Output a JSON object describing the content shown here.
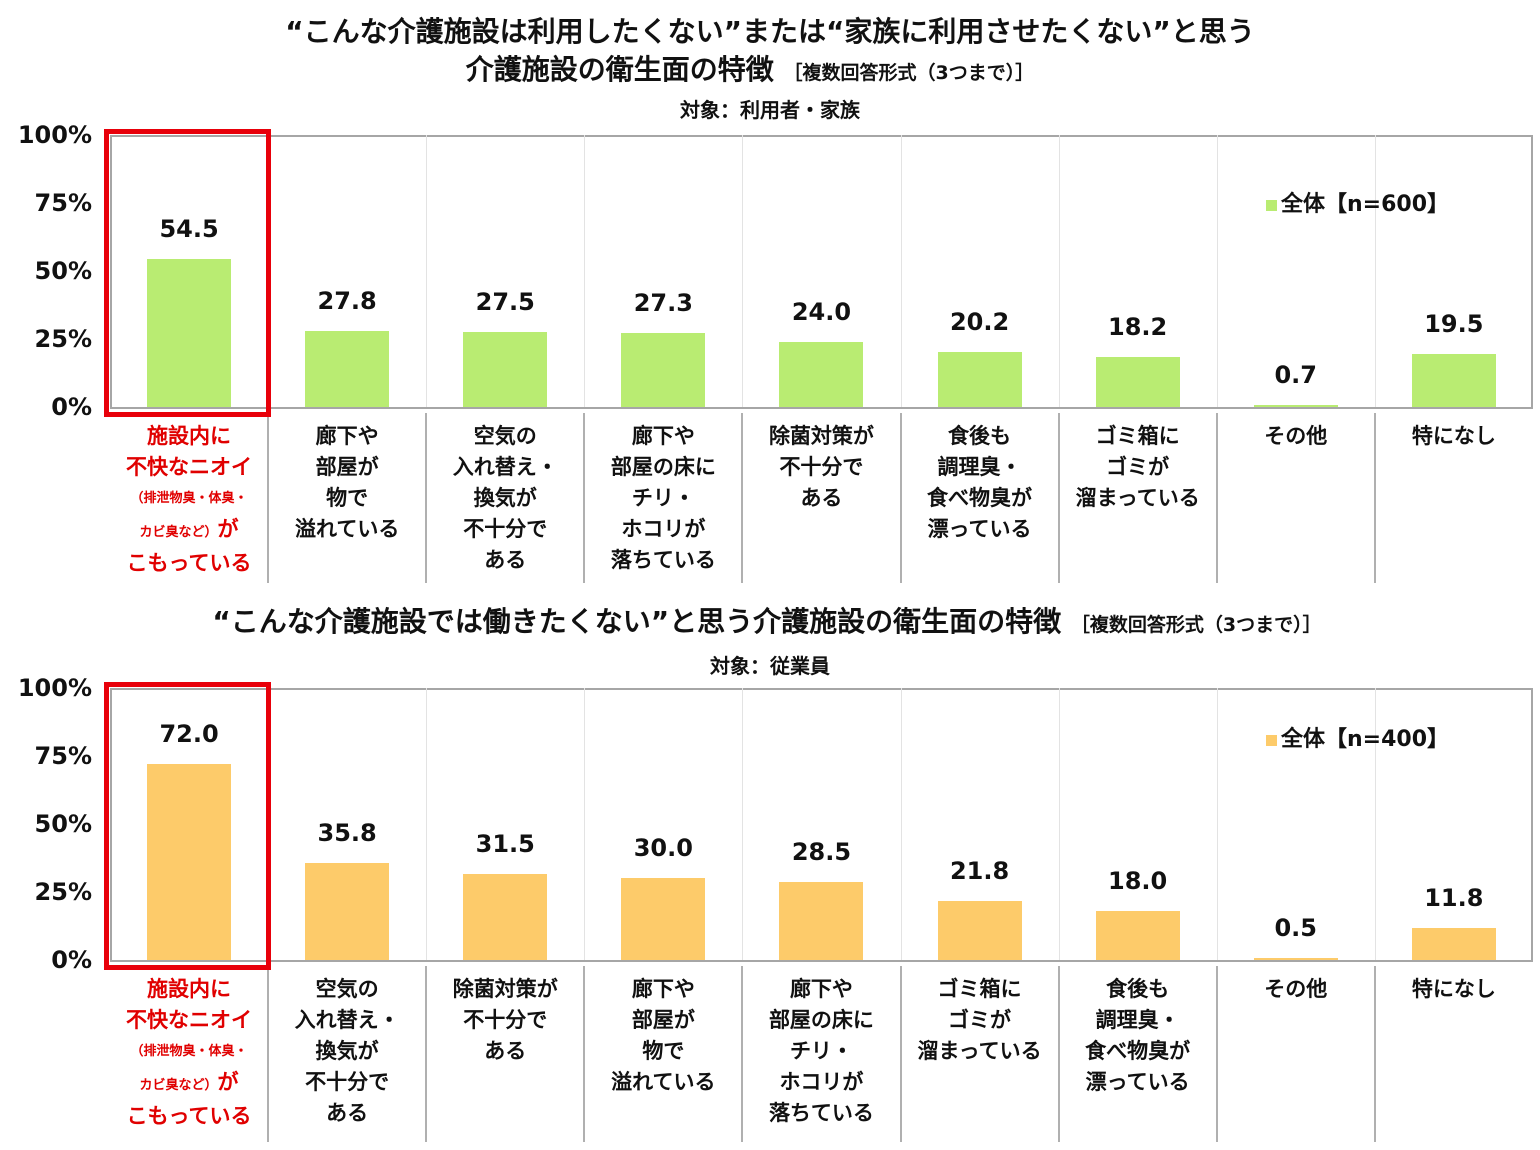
{
  "chart_data": [
    {
      "type": "bar",
      "title": "“こんな介護施設は利用したくない”または“家族に利用させたくない”と思う 介護施設の衛生面の特徴",
      "subtitle": "［複数回答形式（3つまで）］",
      "target": "対象：利用者・家族",
      "xlabel": "",
      "ylabel": "",
      "ylim": [
        0,
        100
      ],
      "yticks": [
        "100%",
        "75%",
        "50%",
        "25%",
        "0%"
      ],
      "grid": "vertical category separators",
      "legend_position": "top-right",
      "categories": [
        "施設内に不快なニオイ（排泄物臭・体臭・カビ臭など）がこもっている",
        "廊下や部屋が物で溢れている",
        "空気の入れ替え・換気が不十分である",
        "廊下や部屋の床にチリ・ホコリが落ちている",
        "除菌対策が不十分である",
        "食後も調理臭・食べ物臭が漂っている",
        "ゴミ箱にゴミが溜まっている",
        "その他",
        "特になし"
      ],
      "series": [
        {
          "name": "全体【n=600】",
          "color": "#B9EC72",
          "values": [
            54.5,
            27.8,
            27.5,
            27.3,
            24.0,
            20.2,
            18.2,
            0.7,
            19.5
          ]
        }
      ],
      "highlight_index": 0
    },
    {
      "type": "bar",
      "title": "“こんな介護施設では働きたくない”と思う介護施設の衛生面の特徴",
      "subtitle": "［複数回答形式（3つまで）］",
      "target": "対象：従業員",
      "xlabel": "",
      "ylabel": "",
      "ylim": [
        0,
        100
      ],
      "yticks": [
        "100%",
        "75%",
        "50%",
        "25%",
        "0%"
      ],
      "grid": "vertical category separators",
      "legend_position": "top-right",
      "categories": [
        "施設内に不快なニオイ（排泄物臭・体臭・カビ臭など）がこもっている",
        "空気の入れ替え・換気が不十分である",
        "除菌対策が不十分である",
        "廊下や部屋が物で溢れている",
        "廊下や部屋の床にチリ・ホコリが落ちている",
        "ゴミ箱にゴミが溜まっている",
        "食後も調理臭・食べ物臭が漂っている",
        "その他",
        "特になし"
      ],
      "series": [
        {
          "name": "全体【n=400】",
          "color": "#FDCB6A",
          "values": [
            72.0,
            35.8,
            31.5,
            30.0,
            28.5,
            21.8,
            18.0,
            0.5,
            11.8
          ]
        }
      ],
      "highlight_index": 0
    }
  ],
  "top": {
    "title_line1": "“こんな介護施設は利用したくない”または“家族に利用させたくない”と思う",
    "title_line2": "介護施設の衛生面の特徴",
    "subtitle": "［複数回答形式（3つまで）］",
    "target": "対象：利用者・家族",
    "legend": "全体【n=600】",
    "color": "#B9EC72",
    "yticks": [
      "100%",
      "75%",
      "50%",
      "25%",
      "0%"
    ],
    "values": [
      "54.5",
      "27.8",
      "27.5",
      "27.3",
      "24.0",
      "20.2",
      "18.2",
      "0.7",
      "19.5"
    ],
    "labels": [
      [
        "施設内に",
        "不快なニオイ",
        "（排泄物臭・体臭・",
        "カビ臭など）",
        "がこもっている"
      ],
      [
        "廊下や",
        "部屋が",
        "物で",
        "溢れている"
      ],
      [
        "空気の",
        "入れ替え・",
        "換気が",
        "不十分で",
        "ある"
      ],
      [
        "廊下や",
        "部屋の床に",
        "チリ・",
        "ホコリが",
        "落ちている"
      ],
      [
        "除菌対策が",
        "不十分で",
        "ある"
      ],
      [
        "食後も",
        "調理臭・",
        "食べ物臭が",
        "漂っている"
      ],
      [
        "ゴミ箱に",
        "ゴミが",
        "溜まっている"
      ],
      [
        "その他"
      ],
      [
        "特になし"
      ]
    ]
  },
  "bottom": {
    "title": "“こんな介護施設では働きたくない”と思う介護施設の衛生面の特徴",
    "subtitle": "［複数回答形式（3つまで）］",
    "target": "対象：従業員",
    "legend": "全体【n=400】",
    "color": "#FDCB6A",
    "yticks": [
      "100%",
      "75%",
      "50%",
      "25%",
      "0%"
    ],
    "values": [
      "72.0",
      "35.8",
      "31.5",
      "30.0",
      "28.5",
      "21.8",
      "18.0",
      "0.5",
      "11.8"
    ],
    "labels": [
      [
        "施設内に",
        "不快なニオイ",
        "（排泄物臭・体臭・",
        "カビ臭など）",
        "がこもっている"
      ],
      [
        "空気の",
        "入れ替え・",
        "換気が",
        "不十分で",
        "ある"
      ],
      [
        "除菌対策が",
        "不十分で",
        "ある"
      ],
      [
        "廊下や",
        "部屋が",
        "物で",
        "溢れている"
      ],
      [
        "廊下や",
        "部屋の床に",
        "チリ・",
        "ホコリが",
        "落ちている"
      ],
      [
        "ゴミ箱に",
        "ゴミが",
        "溜まっている"
      ],
      [
        "食後も",
        "調理臭・",
        "食べ物臭が",
        "漂っている"
      ],
      [
        "その他"
      ],
      [
        "特になし"
      ]
    ]
  },
  "highlight_color": "#E8000A"
}
